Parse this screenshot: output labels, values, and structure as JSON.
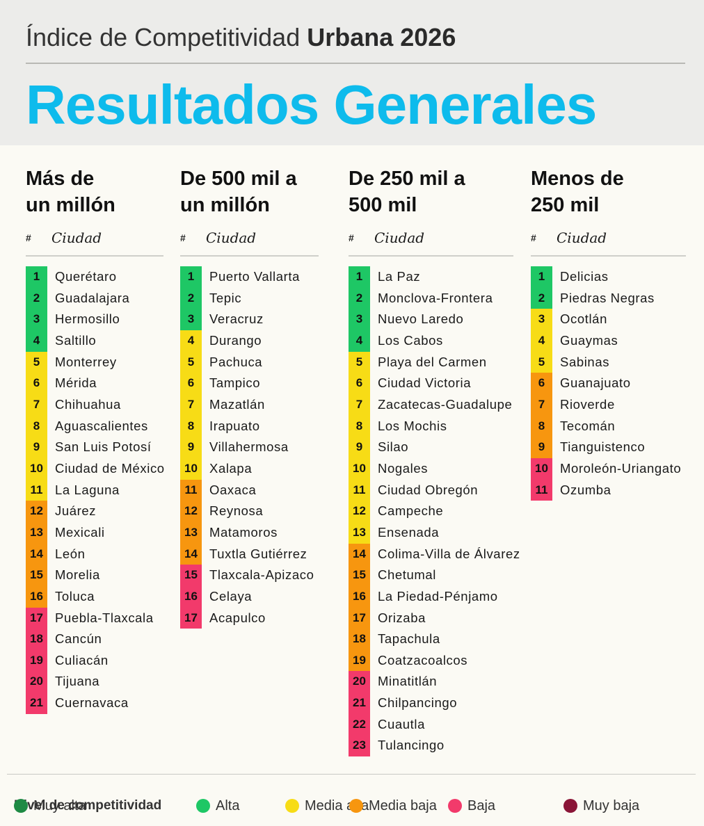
{
  "header": {
    "kicker_light": "Índice de Competitividad ",
    "kicker_bold": "Urbana 2026",
    "headline": "Resultados Generales"
  },
  "colors": {
    "muy_alta": "#1e8a44",
    "alta": "#1ec765",
    "media_alta": "#f7dc16",
    "media_baja": "#f7960f",
    "baja": "#f23a6b",
    "muy_baja": "#8a1537",
    "headline": "#0ebbec"
  },
  "table_header": {
    "hash": "#",
    "city": "Ciudad"
  },
  "groups": [
    {
      "title_line1": "Más de",
      "title_line2": "un millón",
      "rows": [
        {
          "rank": "1",
          "city": "Querétaro",
          "level": "alta"
        },
        {
          "rank": "2",
          "city": "Guadalajara",
          "level": "alta"
        },
        {
          "rank": "3",
          "city": "Hermosillo",
          "level": "alta"
        },
        {
          "rank": "4",
          "city": "Saltillo",
          "level": "alta"
        },
        {
          "rank": "5",
          "city": "Monterrey",
          "level": "media_alta"
        },
        {
          "rank": "6",
          "city": "Mérida",
          "level": "media_alta"
        },
        {
          "rank": "7",
          "city": "Chihuahua",
          "level": "media_alta"
        },
        {
          "rank": "8",
          "city": "Aguascalientes",
          "level": "media_alta"
        },
        {
          "rank": "9",
          "city": "San Luis Potosí",
          "level": "media_alta"
        },
        {
          "rank": "10",
          "city": "Ciudad de México",
          "level": "media_alta"
        },
        {
          "rank": "11",
          "city": "La Laguna",
          "level": "media_alta"
        },
        {
          "rank": "12",
          "city": "Juárez",
          "level": "media_baja"
        },
        {
          "rank": "13",
          "city": "Mexicali",
          "level": "media_baja"
        },
        {
          "rank": "14",
          "city": "León",
          "level": "media_baja"
        },
        {
          "rank": "15",
          "city": "Morelia",
          "level": "media_baja"
        },
        {
          "rank": "16",
          "city": "Toluca",
          "level": "media_baja"
        },
        {
          "rank": "17",
          "city": "Puebla-Tlaxcala",
          "level": "baja"
        },
        {
          "rank": "18",
          "city": "Cancún",
          "level": "baja"
        },
        {
          "rank": "19",
          "city": "Culiacán",
          "level": "baja"
        },
        {
          "rank": "20",
          "city": "Tijuana",
          "level": "baja"
        },
        {
          "rank": "21",
          "city": "Cuernavaca",
          "level": "baja"
        }
      ]
    },
    {
      "title_line1": "De 500 mil a",
      "title_line2": "un millón",
      "rows": [
        {
          "rank": "1",
          "city": "Puerto Vallarta",
          "level": "alta"
        },
        {
          "rank": "2",
          "city": "Tepic",
          "level": "alta"
        },
        {
          "rank": "3",
          "city": "Veracruz",
          "level": "alta"
        },
        {
          "rank": "4",
          "city": "Durango",
          "level": "media_alta"
        },
        {
          "rank": "5",
          "city": "Pachuca",
          "level": "media_alta"
        },
        {
          "rank": "6",
          "city": "Tampico",
          "level": "media_alta"
        },
        {
          "rank": "7",
          "city": "Mazatlán",
          "level": "media_alta"
        },
        {
          "rank": "8",
          "city": "Irapuato",
          "level": "media_alta"
        },
        {
          "rank": "9",
          "city": "Villahermosa",
          "level": "media_alta"
        },
        {
          "rank": "10",
          "city": "Xalapa",
          "level": "media_alta"
        },
        {
          "rank": "11",
          "city": "Oaxaca",
          "level": "media_baja"
        },
        {
          "rank": "12",
          "city": "Reynosa",
          "level": "media_baja"
        },
        {
          "rank": "13",
          "city": "Matamoros",
          "level": "media_baja"
        },
        {
          "rank": "14",
          "city": "Tuxtla Gutiérrez",
          "level": "media_baja"
        },
        {
          "rank": "15",
          "city": "Tlaxcala-Apizaco",
          "level": "baja"
        },
        {
          "rank": "16",
          "city": "Celaya",
          "level": "baja"
        },
        {
          "rank": "17",
          "city": "Acapulco",
          "level": "baja"
        }
      ]
    },
    {
      "title_line1": "De 250 mil a",
      "title_line2": "500 mil",
      "rows": [
        {
          "rank": "1",
          "city": "La Paz",
          "level": "alta"
        },
        {
          "rank": "2",
          "city": "Monclova-Frontera",
          "level": "alta"
        },
        {
          "rank": "3",
          "city": "Nuevo Laredo",
          "level": "alta"
        },
        {
          "rank": "4",
          "city": "Los Cabos",
          "level": "alta"
        },
        {
          "rank": "5",
          "city": "Playa del Carmen",
          "level": "media_alta"
        },
        {
          "rank": "6",
          "city": "Ciudad Victoria",
          "level": "media_alta"
        },
        {
          "rank": "7",
          "city": "Zacatecas-Guadalupe",
          "level": "media_alta"
        },
        {
          "rank": "8",
          "city": "Los Mochis",
          "level": "media_alta"
        },
        {
          "rank": "9",
          "city": "Silao",
          "level": "media_alta"
        },
        {
          "rank": "10",
          "city": "Nogales",
          "level": "media_alta"
        },
        {
          "rank": "11",
          "city": "Ciudad Obregón",
          "level": "media_alta"
        },
        {
          "rank": "12",
          "city": "Campeche",
          "level": "media_alta"
        },
        {
          "rank": "13",
          "city": "Ensenada",
          "level": "media_alta"
        },
        {
          "rank": "14",
          "city": "Colima-Villa de Álvarez",
          "level": "media_baja"
        },
        {
          "rank": "15",
          "city": "Chetumal",
          "level": "media_baja"
        },
        {
          "rank": "16",
          "city": "La Piedad-Pénjamo",
          "level": "media_baja"
        },
        {
          "rank": "17",
          "city": "Orizaba",
          "level": "media_baja"
        },
        {
          "rank": "18",
          "city": "Tapachula",
          "level": "media_baja"
        },
        {
          "rank": "19",
          "city": "Coatzacoalcos",
          "level": "media_baja"
        },
        {
          "rank": "20",
          "city": "Minatitlán",
          "level": "baja"
        },
        {
          "rank": "21",
          "city": "Chilpancingo",
          "level": "baja"
        },
        {
          "rank": "22",
          "city": "Cuautla",
          "level": "baja"
        },
        {
          "rank": "23",
          "city": "Tulancingo",
          "level": "baja"
        }
      ]
    },
    {
      "title_line1": "Menos de",
      "title_line2": "250 mil",
      "rows": [
        {
          "rank": "1",
          "city": "Delicias",
          "level": "alta"
        },
        {
          "rank": "2",
          "city": "Piedras Negras",
          "level": "alta"
        },
        {
          "rank": "3",
          "city": "Ocotlán",
          "level": "media_alta"
        },
        {
          "rank": "4",
          "city": "Guaymas",
          "level": "media_alta"
        },
        {
          "rank": "5",
          "city": "Sabinas",
          "level": "media_alta"
        },
        {
          "rank": "6",
          "city": "Guanajuato",
          "level": "media_baja"
        },
        {
          "rank": "7",
          "city": "Rioverde",
          "level": "media_baja"
        },
        {
          "rank": "8",
          "city": "Tecomán",
          "level": "media_baja"
        },
        {
          "rank": "9",
          "city": "Tianguistenco",
          "level": "media_baja"
        },
        {
          "rank": "10",
          "city": "Moroleón-Uriangato",
          "level": "baja"
        },
        {
          "rank": "11",
          "city": "Ozumba",
          "level": "baja"
        }
      ]
    }
  ],
  "legend": {
    "title": "Nivel de competitividad",
    "items": [
      {
        "label": "Muy alta",
        "level": "muy_alta"
      },
      {
        "label": "Alta",
        "level": "alta"
      },
      {
        "label": "Media alta",
        "level": "media_alta"
      },
      {
        "label": "Media baja",
        "level": "media_baja"
      },
      {
        "label": "Baja",
        "level": "baja"
      },
      {
        "label": "Muy baja",
        "level": "muy_baja"
      }
    ]
  }
}
